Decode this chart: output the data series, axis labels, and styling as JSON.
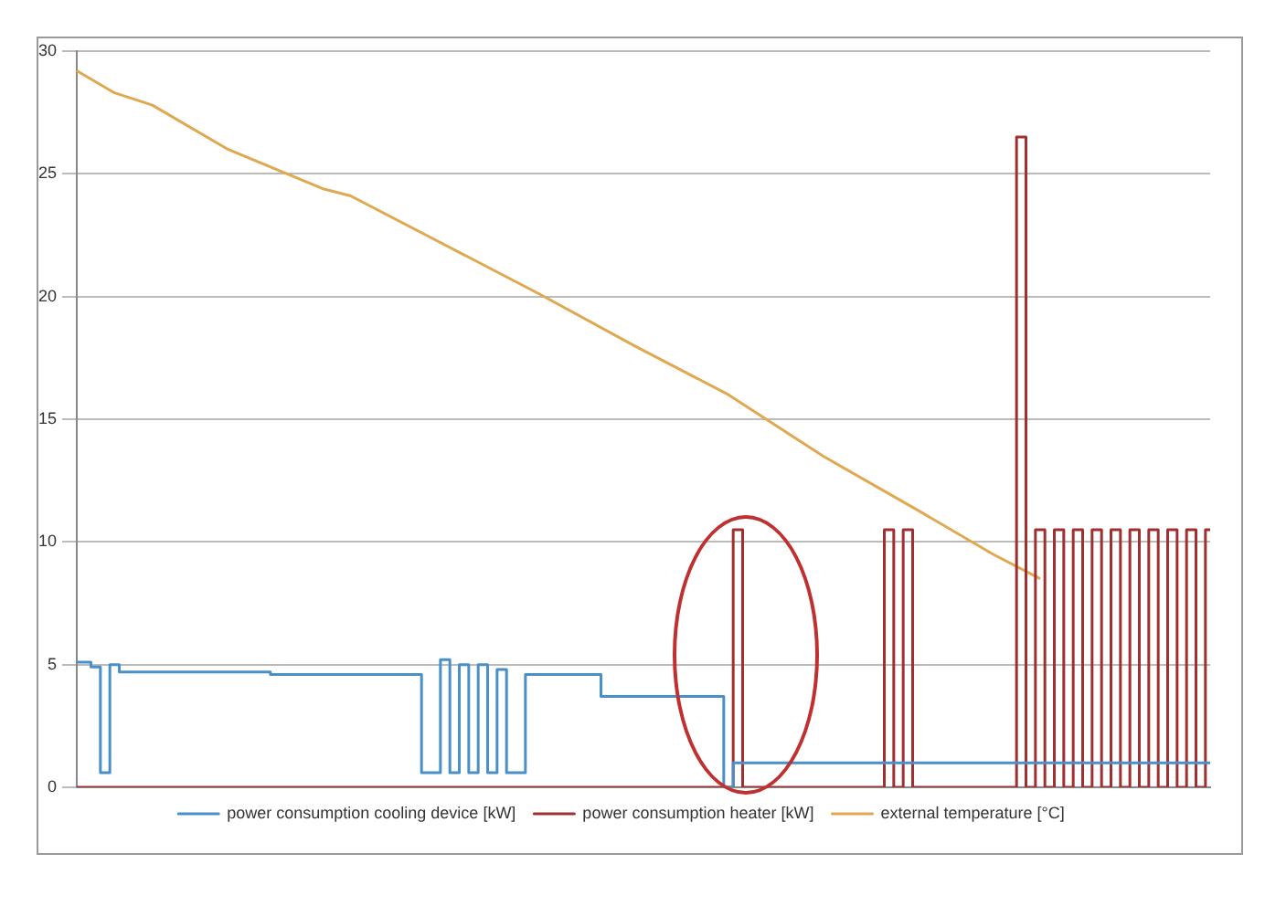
{
  "chart_data": {
    "type": "step",
    "categories": [
      null,
      null,
      null,
      null,
      null,
      null,
      null,
      null,
      null,
      null,
      null,
      null,
      null,
      null,
      null,
      null,
      null,
      null,
      null,
      null,
      null,
      null,
      null,
      null,
      null,
      null,
      null,
      null,
      null,
      null,
      null,
      null,
      null,
      null,
      null,
      null,
      null,
      null,
      null,
      null,
      null,
      null,
      null,
      null,
      null,
      null,
      null,
      null,
      null,
      null,
      null,
      null,
      null,
      null,
      null,
      null,
      null,
      null,
      null,
      null,
      null,
      null,
      null,
      null,
      null,
      null,
      null,
      null,
      null,
      null,
      null,
      null,
      null,
      null,
      null,
      null,
      null,
      null,
      null,
      null,
      null,
      null,
      null,
      null,
      null,
      null,
      null,
      null,
      null,
      null,
      null,
      null,
      null,
      null,
      null,
      null,
      null,
      null,
      null,
      null,
      null,
      null,
      null,
      null,
      null,
      null,
      null,
      null,
      null,
      null,
      null,
      null,
      null,
      null,
      null,
      null,
      null,
      null,
      null,
      null,
      null
    ],
    "ylim": [
      0,
      30
    ],
    "yticks": [
      0,
      5,
      10,
      15,
      20,
      25,
      30
    ],
    "tick_labels": "y",
    "grid": "y",
    "legend": "bottom",
    "series": [
      {
        "name": "power consumption cooling device [kW]",
        "color": "#4a90c8",
        "values": [
          5.1,
          5.1,
          4.9,
          0.6,
          5,
          4.7,
          4.7,
          4.7,
          4.7,
          4.7,
          4.7,
          4.7,
          4.7,
          4.7,
          4.7,
          4.7,
          4.7,
          4.7,
          4.7,
          4.7,
          4.7,
          4.6,
          4.6,
          4.6,
          4.6,
          4.6,
          4.6,
          4.6,
          4.6,
          4.6,
          4.6,
          4.6,
          4.6,
          4.6,
          4.6,
          4.6,
          4.6,
          0.6,
          0.6,
          5.2,
          0.6,
          5,
          0.6,
          5,
          0.6,
          4.8,
          0.6,
          0.6,
          4.6,
          4.6,
          4.6,
          4.6,
          4.6,
          4.6,
          4.6,
          4.6,
          3.7,
          3.7,
          3.7,
          3.7,
          3.7,
          3.7,
          3.7,
          3.7,
          3.7,
          3.7,
          3.7,
          3.7,
          3.7,
          0,
          1,
          1,
          1,
          1,
          1,
          1,
          1,
          1,
          1,
          1,
          1,
          1,
          1,
          1,
          1,
          1,
          1,
          1,
          1,
          1,
          1,
          1,
          1,
          1,
          1,
          1,
          1,
          1,
          1,
          1,
          1,
          1,
          1,
          1,
          1,
          1,
          1,
          1,
          1,
          1,
          1,
          1,
          1,
          1,
          1,
          1,
          1,
          1,
          1,
          1,
          1
        ]
      },
      {
        "name": "power consumption heater [kW]",
        "color": "#a03030",
        "values": [
          0,
          0,
          0,
          0,
          0,
          0,
          0,
          0,
          0,
          0,
          0,
          0,
          0,
          0,
          0,
          0,
          0,
          0,
          0,
          0,
          0,
          0,
          0,
          0,
          0,
          0,
          0,
          0,
          0,
          0,
          0,
          0,
          0,
          0,
          0,
          0,
          0,
          0,
          0,
          0,
          0,
          0,
          0,
          0,
          0,
          0,
          0,
          0,
          0,
          0,
          0,
          0,
          0,
          0,
          0,
          0,
          0,
          0,
          0,
          0,
          0,
          0,
          0,
          0,
          0,
          0,
          0,
          0,
          0,
          0,
          10.5,
          0,
          0,
          0,
          0,
          0,
          0,
          0,
          0,
          0,
          0,
          0,
          0,
          0,
          0,
          0,
          10.5,
          0,
          10.5,
          0,
          0,
          0,
          0,
          0,
          0,
          0,
          0,
          0,
          0,
          0,
          26.5,
          0,
          10.5,
          0,
          10.5,
          0,
          10.5,
          0,
          10.5,
          0,
          10.5,
          0,
          10.5,
          0,
          10.5,
          0,
          10.5,
          0,
          10.5,
          0,
          10.5
        ]
      },
      {
        "name": "external temperature [°C]",
        "type": "line",
        "color": "#e0a850",
        "values": [
          29.2,
          null,
          null,
          null,
          28.3,
          null,
          null,
          null,
          27.8,
          null,
          null,
          null,
          null,
          null,
          null,
          null,
          26,
          null,
          null,
          null,
          null,
          null,
          null,
          null,
          null,
          null,
          24.4,
          null,
          null,
          24.1,
          null,
          null,
          null,
          null,
          null,
          null,
          null,
          22.5,
          null,
          null,
          null,
          null,
          null,
          null,
          null,
          null,
          null,
          null,
          null,
          20.1,
          null,
          null,
          null,
          null,
          null,
          null,
          null,
          null,
          null,
          18,
          null,
          null,
          null,
          null,
          null,
          null,
          null,
          null,
          null,
          16,
          null,
          null,
          null,
          null,
          null,
          null,
          null,
          null,
          null,
          13.5,
          null,
          null,
          null,
          null,
          null,
          null,
          null,
          null,
          null,
          11.3,
          null,
          null,
          null,
          null,
          null,
          null,
          null,
          9.5,
          null,
          null,
          null,
          null,
          8.5,
          null,
          null,
          null,
          null,
          null,
          null,
          null,
          null,
          null,
          null,
          null,
          null,
          null,
          null,
          null,
          null,
          null,
          null
        ]
      }
    ]
  }
}
